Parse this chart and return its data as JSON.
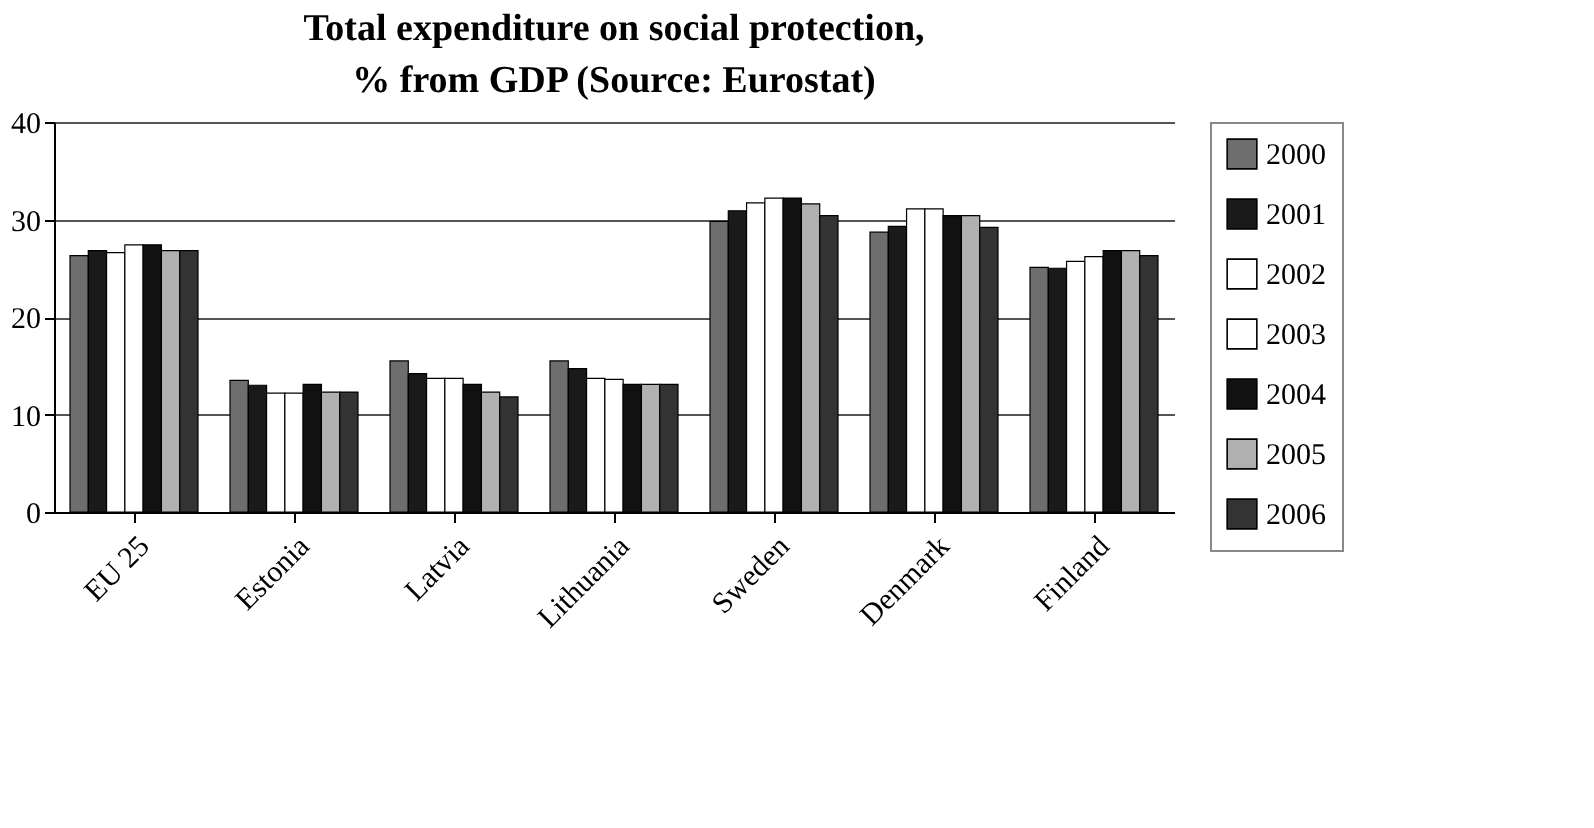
{
  "chart_data": {
    "type": "bar",
    "title": "Total expenditure on social protection, % from GDP (Source: Eurostat)",
    "categories": [
      "EU 25",
      "Estonia",
      "Latvia",
      "Lithuania",
      "Sweden",
      "Denmark",
      "Finland"
    ],
    "series": [
      {
        "name": "2000",
        "color": "#6e6e6e",
        "values": [
          26.3,
          13.5,
          15.5,
          15.5,
          29.8,
          28.7,
          25.1
        ]
      },
      {
        "name": "2001",
        "color": "#1a1a1a",
        "values": [
          26.8,
          13.0,
          14.2,
          14.7,
          30.9,
          29.3,
          25.0
        ]
      },
      {
        "name": "2002",
        "color": "#ffffff",
        "values": [
          26.6,
          12.2,
          13.7,
          13.7,
          31.7,
          31.1,
          25.7
        ]
      },
      {
        "name": "2003",
        "color": "#ffffff",
        "values": [
          27.4,
          12.2,
          13.7,
          13.6,
          32.2,
          31.1,
          26.2
        ]
      },
      {
        "name": "2004",
        "color": "#111111",
        "values": [
          27.4,
          13.1,
          13.1,
          13.1,
          32.2,
          30.4,
          26.8
        ]
      },
      {
        "name": "2005",
        "color": "#b0b0b0",
        "values": [
          26.8,
          12.3,
          12.3,
          13.1,
          31.6,
          30.4,
          26.8
        ]
      },
      {
        "name": "2006",
        "color": "#333333",
        "values": [
          26.8,
          12.3,
          11.8,
          13.1,
          30.4,
          29.2,
          26.3
        ]
      }
    ],
    "ylim": [
      0,
      40
    ],
    "yticks": [
      0,
      10,
      20,
      30,
      40
    ],
    "grid": "y",
    "legend": "right"
  }
}
